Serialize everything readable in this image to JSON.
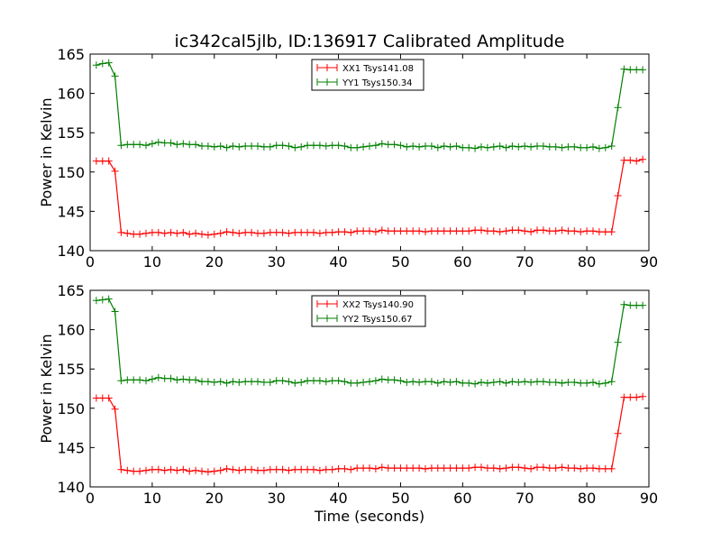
{
  "figure": {
    "title": "ic342cal5jlb, ID:136917 Calibrated Amplitude",
    "xlabel": "Time (seconds)",
    "ylabel": "Power in Kelvin",
    "colors": {
      "xx": "#ff0000",
      "yy": "#008000",
      "axes": "#000000"
    }
  },
  "chart_data": [
    {
      "type": "line",
      "title": "ic342cal5jlb, ID:136917 Calibrated Amplitude",
      "xlabel": "",
      "ylabel": "Power in Kelvin",
      "xlim": [
        0,
        90
      ],
      "ylim": [
        140,
        165
      ],
      "xticks": [
        0,
        10,
        20,
        30,
        40,
        50,
        60,
        70,
        80,
        90
      ],
      "yticks": [
        140,
        145,
        150,
        155,
        160,
        165
      ],
      "legend_position": "top-center",
      "grid": false,
      "x": [
        1,
        2,
        3,
        4,
        5,
        6,
        7,
        8,
        9,
        10,
        11,
        12,
        13,
        14,
        15,
        16,
        17,
        18,
        19,
        20,
        21,
        22,
        23,
        24,
        25,
        26,
        27,
        28,
        29,
        30,
        31,
        32,
        33,
        34,
        35,
        36,
        37,
        38,
        39,
        40,
        41,
        42,
        43,
        44,
        45,
        46,
        47,
        48,
        49,
        50,
        51,
        52,
        53,
        54,
        55,
        56,
        57,
        58,
        59,
        60,
        61,
        62,
        63,
        64,
        65,
        66,
        67,
        68,
        69,
        70,
        71,
        72,
        73,
        74,
        75,
        76,
        77,
        78,
        79,
        80,
        81,
        82,
        83,
        84,
        85,
        86,
        87,
        88,
        89
      ],
      "series": [
        {
          "name": "XX1 Tsys141.08",
          "color": "#ff0000",
          "values": [
            151.4,
            151.4,
            151.4,
            150.1,
            142.3,
            142.2,
            142.1,
            142.1,
            142.2,
            142.3,
            142.3,
            142.2,
            142.3,
            142.2,
            142.3,
            142.1,
            142.2,
            142.1,
            142.0,
            142.1,
            142.2,
            142.4,
            142.3,
            142.2,
            142.3,
            142.3,
            142.2,
            142.2,
            142.3,
            142.3,
            142.3,
            142.2,
            142.3,
            142.3,
            142.3,
            142.3,
            142.2,
            142.3,
            142.3,
            142.4,
            142.4,
            142.3,
            142.5,
            142.5,
            142.5,
            142.4,
            142.6,
            142.5,
            142.5,
            142.5,
            142.5,
            142.5,
            142.5,
            142.4,
            142.5,
            142.5,
            142.5,
            142.5,
            142.5,
            142.5,
            142.5,
            142.6,
            142.6,
            142.5,
            142.5,
            142.4,
            142.5,
            142.6,
            142.6,
            142.5,
            142.4,
            142.6,
            142.6,
            142.5,
            142.5,
            142.6,
            142.5,
            142.5,
            142.4,
            142.5,
            142.5,
            142.4,
            142.4,
            142.4,
            147.0,
            151.5,
            151.5,
            151.4,
            151.6
          ]
        },
        {
          "name": "YY1 Tsys150.34",
          "color": "#008000",
          "values": [
            163.6,
            163.8,
            163.9,
            162.2,
            153.4,
            153.5,
            153.5,
            153.5,
            153.4,
            153.6,
            153.8,
            153.7,
            153.7,
            153.5,
            153.6,
            153.5,
            153.5,
            153.3,
            153.3,
            153.2,
            153.3,
            153.1,
            153.3,
            153.2,
            153.3,
            153.3,
            153.3,
            153.2,
            153.2,
            153.4,
            153.4,
            153.3,
            153.1,
            153.2,
            153.4,
            153.4,
            153.4,
            153.3,
            153.4,
            153.4,
            153.3,
            153.1,
            153.1,
            153.2,
            153.3,
            153.4,
            153.6,
            153.5,
            153.5,
            153.4,
            153.2,
            153.3,
            153.2,
            153.3,
            153.3,
            153.1,
            153.3,
            153.2,
            153.3,
            153.1,
            153.1,
            153.0,
            153.2,
            153.1,
            153.2,
            153.3,
            153.1,
            153.3,
            153.2,
            153.3,
            153.2,
            153.3,
            153.3,
            153.2,
            153.2,
            153.1,
            153.2,
            153.2,
            153.1,
            153.1,
            153.2,
            153.0,
            153.1,
            153.3,
            158.2,
            163.1,
            163.0,
            163.0,
            163.0
          ]
        }
      ]
    },
    {
      "type": "line",
      "title": "",
      "xlabel": "Time (seconds)",
      "ylabel": "Power in Kelvin",
      "xlim": [
        0,
        90
      ],
      "ylim": [
        140,
        165
      ],
      "xticks": [
        0,
        10,
        20,
        30,
        40,
        50,
        60,
        70,
        80,
        90
      ],
      "yticks": [
        140,
        145,
        150,
        155,
        160,
        165
      ],
      "legend_position": "top-center",
      "grid": false,
      "x": [
        1,
        2,
        3,
        4,
        5,
        6,
        7,
        8,
        9,
        10,
        11,
        12,
        13,
        14,
        15,
        16,
        17,
        18,
        19,
        20,
        21,
        22,
        23,
        24,
        25,
        26,
        27,
        28,
        29,
        30,
        31,
        32,
        33,
        34,
        35,
        36,
        37,
        38,
        39,
        40,
        41,
        42,
        43,
        44,
        45,
        46,
        47,
        48,
        49,
        50,
        51,
        52,
        53,
        54,
        55,
        56,
        57,
        58,
        59,
        60,
        61,
        62,
        63,
        64,
        65,
        66,
        67,
        68,
        69,
        70,
        71,
        72,
        73,
        74,
        75,
        76,
        77,
        78,
        79,
        80,
        81,
        82,
        83,
        84,
        85,
        86,
        87,
        88,
        89
      ],
      "series": [
        {
          "name": "XX2 Tsys140.90",
          "color": "#ff0000",
          "values": [
            151.3,
            151.3,
            151.3,
            149.9,
            142.2,
            142.1,
            142.0,
            142.0,
            142.1,
            142.2,
            142.2,
            142.1,
            142.2,
            142.1,
            142.2,
            142.0,
            142.1,
            142.0,
            141.9,
            142.0,
            142.1,
            142.3,
            142.2,
            142.1,
            142.2,
            142.2,
            142.1,
            142.1,
            142.2,
            142.2,
            142.2,
            142.1,
            142.2,
            142.2,
            142.2,
            142.2,
            142.1,
            142.2,
            142.2,
            142.3,
            142.3,
            142.2,
            142.4,
            142.4,
            142.4,
            142.3,
            142.5,
            142.4,
            142.4,
            142.4,
            142.4,
            142.4,
            142.4,
            142.3,
            142.4,
            142.4,
            142.4,
            142.4,
            142.4,
            142.4,
            142.4,
            142.5,
            142.5,
            142.4,
            142.4,
            142.3,
            142.4,
            142.5,
            142.5,
            142.4,
            142.3,
            142.5,
            142.5,
            142.4,
            142.4,
            142.5,
            142.4,
            142.4,
            142.3,
            142.4,
            142.4,
            142.3,
            142.3,
            142.3,
            146.8,
            151.4,
            151.4,
            151.4,
            151.5
          ]
        },
        {
          "name": "YY2 Tsys150.67",
          "color": "#008000",
          "values": [
            163.7,
            163.8,
            163.9,
            162.3,
            153.5,
            153.6,
            153.6,
            153.6,
            153.5,
            153.7,
            153.9,
            153.8,
            153.8,
            153.6,
            153.7,
            153.6,
            153.6,
            153.4,
            153.4,
            153.3,
            153.4,
            153.2,
            153.4,
            153.3,
            153.4,
            153.4,
            153.4,
            153.3,
            153.3,
            153.5,
            153.5,
            153.4,
            153.2,
            153.3,
            153.5,
            153.5,
            153.5,
            153.4,
            153.5,
            153.5,
            153.4,
            153.2,
            153.2,
            153.3,
            153.4,
            153.5,
            153.7,
            153.6,
            153.6,
            153.5,
            153.3,
            153.4,
            153.3,
            153.4,
            153.4,
            153.2,
            153.4,
            153.3,
            153.4,
            153.2,
            153.2,
            153.1,
            153.3,
            153.2,
            153.3,
            153.4,
            153.2,
            153.4,
            153.3,
            153.4,
            153.3,
            153.4,
            153.4,
            153.3,
            153.3,
            153.2,
            153.3,
            153.3,
            153.2,
            153.2,
            153.3,
            153.1,
            153.2,
            153.4,
            158.4,
            163.2,
            163.1,
            163.1,
            163.1
          ]
        }
      ]
    }
  ]
}
